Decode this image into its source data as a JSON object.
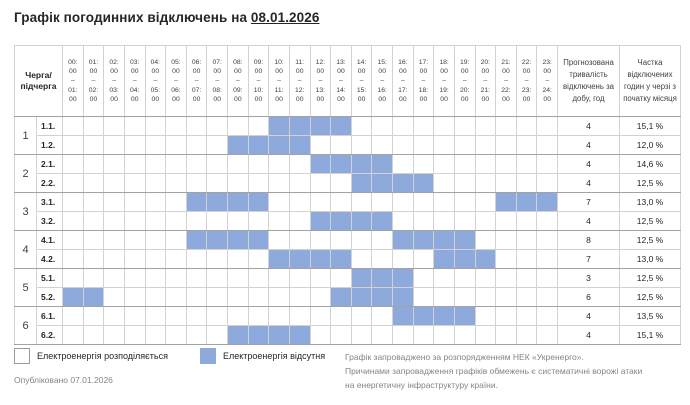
{
  "title": {
    "prefix": "Графік погодинних відключень на",
    "date": "08.01.2026"
  },
  "colors": {
    "outage_fill": "#8EA9DB",
    "grid_line": "#D2D2D2"
  },
  "table": {
    "corner_header": "Черга/підчерга",
    "duration_header": "Прогнозована тривалість відключень за добу, год",
    "share_header": "Частка відключених годин у черзі з початку місяця",
    "hours": [
      {
        "from": "00:00",
        "to": "01:00"
      },
      {
        "from": "01:00",
        "to": "02:00"
      },
      {
        "from": "02:00",
        "to": "03:00"
      },
      {
        "from": "03:00",
        "to": "04:00"
      },
      {
        "from": "04:00",
        "to": "05:00"
      },
      {
        "from": "05:00",
        "to": "06:00"
      },
      {
        "from": "06:00",
        "to": "07:00"
      },
      {
        "from": "07:00",
        "to": "08:00"
      },
      {
        "from": "08:00",
        "to": "09:00"
      },
      {
        "from": "09:00",
        "to": "10:00"
      },
      {
        "from": "10:00",
        "to": "11:00"
      },
      {
        "from": "11:00",
        "to": "12:00"
      },
      {
        "from": "12:00",
        "to": "13:00"
      },
      {
        "from": "13:00",
        "to": "14:00"
      },
      {
        "from": "14:00",
        "to": "15:00"
      },
      {
        "from": "15:00",
        "to": "16:00"
      },
      {
        "from": "16:00",
        "to": "17:00"
      },
      {
        "from": "17:00",
        "to": "18:00"
      },
      {
        "from": "18:00",
        "to": "19:00"
      },
      {
        "from": "19:00",
        "to": "20:00"
      },
      {
        "from": "20:00",
        "to": "21:00"
      },
      {
        "from": "21:00",
        "to": "22:00"
      },
      {
        "from": "22:00",
        "to": "23:00"
      },
      {
        "from": "23:00",
        "to": "24:00"
      }
    ],
    "groups": [
      {
        "queue": "1",
        "rows": [
          {
            "label": "1.1.",
            "outage_hours": [
              10,
              11,
              12,
              13
            ],
            "duration": "4",
            "share": "15,1 %"
          },
          {
            "label": "1.2.",
            "outage_hours": [
              8,
              9,
              10,
              11
            ],
            "duration": "4",
            "share": "12,0 %"
          }
        ]
      },
      {
        "queue": "2",
        "rows": [
          {
            "label": "2.1.",
            "outage_hours": [
              12,
              13,
              14,
              15
            ],
            "duration": "4",
            "share": "14,6 %"
          },
          {
            "label": "2.2.",
            "outage_hours": [
              14,
              15,
              16,
              17
            ],
            "duration": "4",
            "share": "12,5 %"
          }
        ]
      },
      {
        "queue": "3",
        "rows": [
          {
            "label": "3.1.",
            "outage_hours": [
              6,
              7,
              8,
              9,
              21,
              22,
              23
            ],
            "duration": "7",
            "share": "13,0 %"
          },
          {
            "label": "3.2.",
            "outage_hours": [
              12,
              13,
              14,
              15
            ],
            "duration": "4",
            "share": "12,5 %"
          }
        ]
      },
      {
        "queue": "4",
        "rows": [
          {
            "label": "4.1.",
            "outage_hours": [
              6,
              7,
              8,
              9,
              16,
              17,
              18,
              19
            ],
            "duration": "8",
            "share": "12,5 %"
          },
          {
            "label": "4.2.",
            "outage_hours": [
              10,
              11,
              12,
              13,
              18,
              19,
              20
            ],
            "duration": "7",
            "share": "13,0 %"
          }
        ]
      },
      {
        "queue": "5",
        "rows": [
          {
            "label": "5.1.",
            "outage_hours": [
              14,
              15,
              16
            ],
            "duration": "3",
            "share": "12,5 %"
          },
          {
            "label": "5.2.",
            "outage_hours": [
              0,
              1,
              13,
              14,
              15,
              16
            ],
            "duration": "6",
            "share": "12,5 %"
          }
        ]
      },
      {
        "queue": "6",
        "rows": [
          {
            "label": "6.1.",
            "outage_hours": [
              16,
              17,
              18,
              19
            ],
            "duration": "4",
            "share": "13,5 %"
          },
          {
            "label": "6.2.",
            "outage_hours": [
              8,
              9,
              10,
              11
            ],
            "duration": "4",
            "share": "15,1 %"
          }
        ]
      }
    ]
  },
  "legend": {
    "available": "Електроенергія розподіляється",
    "absent": "Електроенергія відсутня"
  },
  "footer": {
    "published": "Опубліковано 07.01.2026",
    "note": "Графік запроваджено за розпорядженням НЕК «Укренерго».\nПричинами запровадження графіків обмежень є систематичні ворожі атаки\nна енергетичну інфраструктуру країни."
  }
}
